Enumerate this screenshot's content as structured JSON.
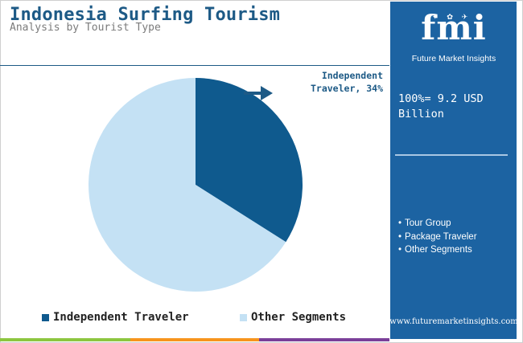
{
  "header": {
    "title": "Indonesia Surfing Tourism",
    "subtitle": "Analysis by Tourist Type"
  },
  "chart_data": {
    "type": "pie",
    "slices": [
      {
        "label": "Independent Traveler",
        "value": 34,
        "color": "#0f5a8e"
      },
      {
        "label": "Other Segments",
        "value": 66,
        "color": "#c4e1f4"
      }
    ],
    "data_labels": [
      {
        "slice": "Independent Traveler",
        "line1": "Independent",
        "line2": "Traveler, 34%"
      }
    ],
    "legend": [
      "Independent Traveler",
      "Other Segments"
    ],
    "legend_position": "bottom"
  },
  "side_panel": {
    "logo_text": "fmi",
    "logo_caption": "Future Market Insights",
    "total_line1": "100%= 9.2 USD",
    "total_line2": "Billion",
    "other_segments": [
      "Tour Group",
      "Package Traveler",
      "Other Segments"
    ],
    "url": "www.futuremarketinsights.com"
  },
  "colors": {
    "accent": "#1d5a86",
    "panel": "#1c63a2",
    "slice_dark": "#0f5a8e",
    "slice_light": "#c4e1f4",
    "bar_colors": [
      "#8dc63f",
      "#f7941d",
      "#7b3f99"
    ]
  }
}
